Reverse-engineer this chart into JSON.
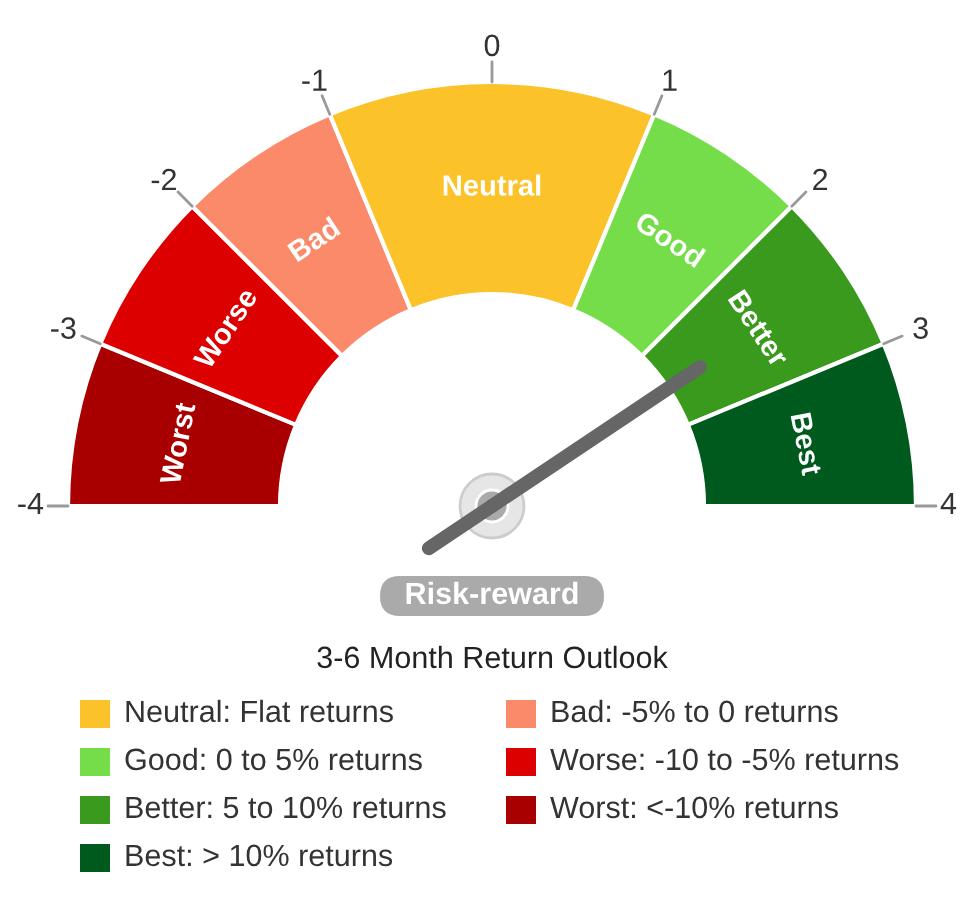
{
  "chart_data": {
    "type": "donut",
    "title": "3-6 Month Return Outlook",
    "subtitle": "Risk-reward",
    "categories": [
      "Worst",
      "Worse",
      "Bad",
      "Neutral",
      "Good",
      "Better",
      "Best"
    ],
    "values": [
      12.5,
      12.5,
      12.5,
      25,
      12.5,
      12.5,
      12.5
    ],
    "colors": [
      "#a80000",
      "#dd0000",
      "#fa8a6a",
      "#fcc22a",
      "#76dd4a",
      "#3a9a1e",
      "#005a1e"
    ],
    "needle": "Better",
    "annotations": [
      "-4",
      "-3",
      "-2",
      "-1",
      "0",
      "1",
      "2",
      "3",
      "4",
      {
        "text": "Neutral: Flat returns",
        "x": "Neutral"
      },
      {
        "text": "Good: 0 to 5% returns",
        "x": "Good"
      },
      {
        "text": "Better: 5 to 10% returns",
        "x": "Better"
      },
      {
        "text": "Best: > 10% returns",
        "x": "Best"
      },
      {
        "text": "Bad: -5% to 0 returns",
        "x": "Bad"
      },
      {
        "text": "Worse: -10 to -5% returns",
        "x": "Worse"
      },
      {
        "text": "Worst: <-10% returns",
        "x": "Worst"
      }
    ]
  }
}
